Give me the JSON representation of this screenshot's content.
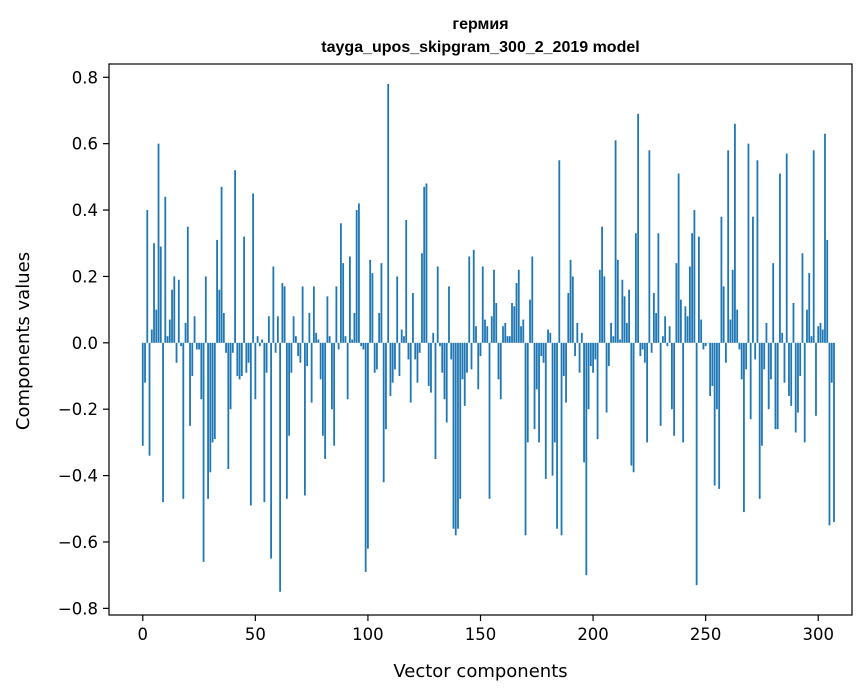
{
  "chart_data": {
    "type": "bar",
    "title_line1": "гермия",
    "title_line2": "tayga_upos_skipgram_300_2_2019 model",
    "xlabel": "Vector components",
    "ylabel": "Components values",
    "xlim": [
      -15,
      315
    ],
    "ylim": [
      -0.82,
      0.84
    ],
    "xticks": [
      0,
      50,
      100,
      150,
      200,
      250,
      300
    ],
    "xtick_labels": [
      "0",
      "50",
      "100",
      "150",
      "200",
      "250",
      "300"
    ],
    "yticks": [
      -0.8,
      -0.6,
      -0.4,
      -0.2,
      0.0,
      0.2,
      0.4,
      0.6,
      0.8
    ],
    "ytick_labels": [
      "−0.8",
      "−0.6",
      "−0.4",
      "−0.2",
      "0.0",
      "0.2",
      "0.4",
      "0.6",
      "0.8"
    ],
    "bar_color": "#1f77b4",
    "values": [
      -0.31,
      -0.12,
      0.4,
      -0.34,
      0.04,
      0.3,
      0.1,
      0.6,
      0.29,
      -0.48,
      0.44,
      0.02,
      0.07,
      0.16,
      0.2,
      -0.06,
      0.19,
      -0.01,
      -0.47,
      0.06,
      0.35,
      -0.25,
      -0.1,
      0.08,
      -0.02,
      -0.02,
      -0.17,
      -0.66,
      0.2,
      -0.47,
      -0.39,
      -0.3,
      -0.29,
      0.31,
      0.16,
      0.47,
      0.09,
      -0.03,
      -0.38,
      -0.2,
      -0.03,
      0.52,
      -0.1,
      -0.11,
      -0.1,
      0.32,
      -0.09,
      -0.06,
      -0.49,
      0.45,
      -0.17,
      0.02,
      -0.01,
      0.01,
      -0.48,
      -0.09,
      0.08,
      -0.65,
      0.23,
      -0.03,
      0.08,
      -0.75,
      0.18,
      0.17,
      -0.47,
      -0.28,
      -0.09,
      0.08,
      0.02,
      -0.04,
      -0.06,
      0.17,
      -0.46,
      -0.07,
      0.09,
      -0.18,
      0.17,
      0.03,
      0.01,
      -0.11,
      -0.28,
      -0.35,
      0.14,
      0.02,
      -0.2,
      -0.31,
      0.17,
      -0.02,
      0.36,
      0.24,
      0.02,
      -0.17,
      0.26,
      0.01,
      0.09,
      0.4,
      0.42,
      -0.01,
      -0.02,
      -0.69,
      -0.62,
      0.25,
      0.21,
      -0.09,
      -0.08,
      0.09,
      0.24,
      -0.42,
      -0.26,
      0.78,
      -0.16,
      -0.12,
      -0.08,
      0.2,
      -0.1,
      0.04,
      0.02,
      0.37,
      -0.05,
      -0.18,
      0.15,
      -0.05,
      -0.12,
      -0.03,
      0.27,
      0.47,
      0.48,
      -0.13,
      -0.15,
      0.03,
      -0.35,
      0.23,
      -0.01,
      -0.09,
      -0.17,
      -0.24,
      0.17,
      -0.05,
      -0.56,
      -0.58,
      -0.56,
      -0.47,
      -0.11,
      -0.19,
      -0.09,
      0.26,
      -0.08,
      0.28,
      0.05,
      -0.14,
      -0.04,
      0.23,
      0.07,
      0.05,
      -0.47,
      0.08,
      0.22,
      0.12,
      -0.11,
      -0.17,
      0.05,
      0.06,
      0.02,
      0.02,
      0.12,
      0.11,
      0.18,
      0.22,
      0.05,
      0.07,
      -0.58,
      -0.3,
      0.13,
      0.26,
      -0.26,
      -0.14,
      -0.3,
      -0.04,
      -0.06,
      -0.41,
      0.04,
      0.03,
      -0.4,
      -0.3,
      -0.56,
      0.55,
      -0.58,
      -0.1,
      -0.18,
      0.15,
      0.25,
      0.2,
      -0.04,
      0.06,
      -0.09,
      0.03,
      -0.36,
      -0.7,
      -0.2,
      -0.07,
      -0.09,
      -0.05,
      -0.29,
      0.22,
      0.35,
      0.2,
      -0.21,
      -0.07,
      0.06,
      0.02,
      0.61,
      0.25,
      0.01,
      0.19,
      0.14,
      0.06,
      0.16,
      -0.37,
      -0.39,
      0.33,
      0.69,
      -0.04,
      -0.02,
      -0.06,
      -0.3,
      0.58,
      -0.03,
      0.15,
      0.09,
      0.33,
      -0.25,
      0.02,
      0.08,
      -0.01,
      0.05,
      -0.2,
      -0.28,
      0.24,
      0.51,
      0.13,
      -0.3,
      0.11,
      0.08,
      0.23,
      0.33,
      0.4,
      -0.73,
      0.32,
      0.07,
      -0.02,
      -0.01,
      0.0,
      -0.16,
      -0.13,
      -0.43,
      -0.2,
      -0.44,
      0.38,
      0.17,
      -0.06,
      0.58,
      0.07,
      0.22,
      0.66,
      0.1,
      -0.02,
      -0.11,
      -0.51,
      -0.08,
      0.6,
      -0.23,
      0.38,
      -0.05,
      0.55,
      -0.47,
      -0.31,
      -0.08,
      0.06,
      -0.2,
      -0.11,
      0.24,
      -0.26,
      -0.26,
      0.51,
      0.03,
      -0.12,
      0.57,
      -0.16,
      -0.19,
      0.12,
      -0.27,
      -0.21,
      -0.1,
      0.27,
      -0.3,
      0.1,
      0.21,
      0.02,
      0.58,
      -0.22,
      0.05,
      0.06,
      0.04,
      0.63,
      0.31,
      -0.55,
      -0.12,
      -0.54
    ]
  }
}
